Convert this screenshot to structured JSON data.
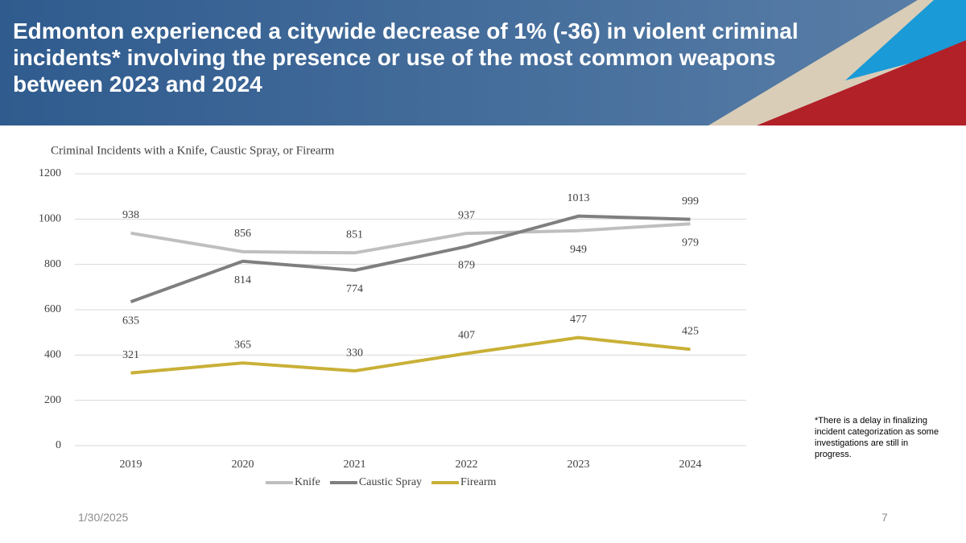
{
  "slide_title": "Edmonton experienced a citywide decrease of 1% (-36) in violent criminal incidents* involving the presence or use of the most common weapons between 2023 and 2024",
  "chart_data": {
    "type": "line",
    "title": "Criminal Incidents with a Knife, Caustic Spray, or Firearm",
    "categories": [
      "2019",
      "2020",
      "2021",
      "2022",
      "2023",
      "2024"
    ],
    "series": [
      {
        "name": "Knife",
        "color": "#bfbfbf",
        "values": [
          938,
          856,
          851,
          937,
          949,
          979
        ]
      },
      {
        "name": "Caustic Spray",
        "color": "#7f7f7f",
        "values": [
          635,
          814,
          774,
          879,
          1013,
          999
        ]
      },
      {
        "name": "Firearm",
        "color": "#c9b037",
        "values": [
          321,
          365,
          330,
          407,
          477,
          425
        ]
      }
    ],
    "ylim": [
      0,
      1200
    ],
    "yticks": [
      0,
      200,
      400,
      600,
      800,
      1000,
      1200
    ],
    "grid": true,
    "legend": "bottom"
  },
  "footnote": "*There is a delay in finalizing incident categorization as some investigations are still in progress.",
  "date": "1/30/2025",
  "page_number": "7"
}
